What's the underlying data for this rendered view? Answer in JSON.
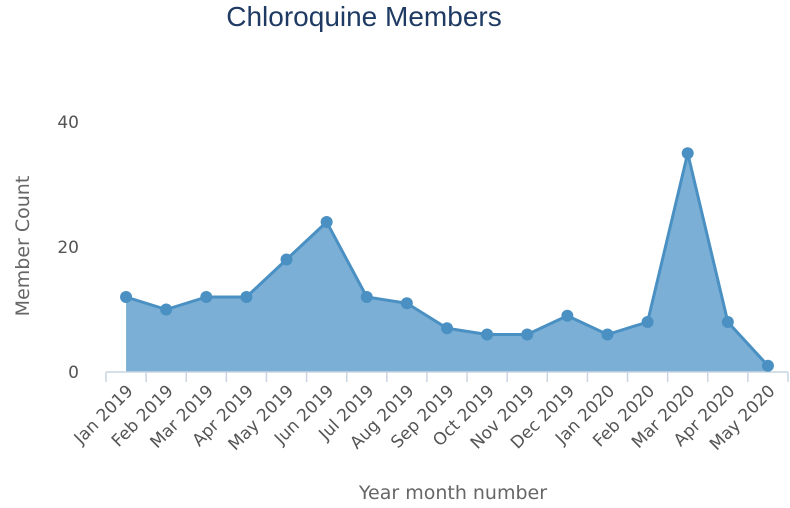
{
  "chart_data": {
    "type": "area",
    "title": "Chloroquine Members",
    "xlabel": "Year month number",
    "ylabel": "Member Count",
    "categories": [
      "Jan 2019",
      "Feb 2019",
      "Mar 2019",
      "Apr 2019",
      "May 2019",
      "Jun 2019",
      "Jul 2019",
      "Aug 2019",
      "Sep 2019",
      "Oct 2019",
      "Nov 2019",
      "Dec 2019",
      "Jan 2020",
      "Feb 2020",
      "Mar 2020",
      "Apr 2020",
      "May 2020"
    ],
    "values": [
      12,
      10,
      12,
      12,
      18,
      24,
      12,
      11,
      7,
      6,
      6,
      9,
      6,
      8,
      35,
      8,
      1
    ],
    "ylim": [
      0,
      40
    ],
    "yticks": [
      "0",
      "20",
      "40"
    ],
    "grid": false,
    "colors": {
      "line": "#4a90c2",
      "fill": "#7bafd6",
      "marker": "#4a90c2"
    }
  }
}
